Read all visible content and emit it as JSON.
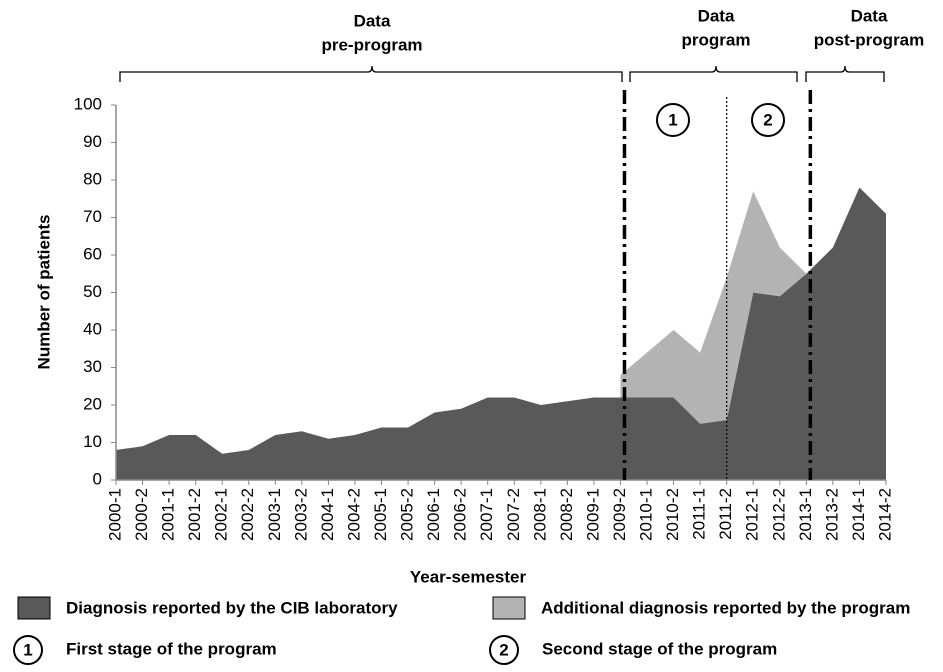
{
  "chart_data": {
    "type": "area",
    "stacked": true,
    "ylabel": "Number of patients",
    "xlabel": "Year-semester",
    "categories": [
      "2000-1",
      "2000-2",
      "2001-1",
      "2001-2",
      "2002-1",
      "2002-2",
      "2003-1",
      "2003-2",
      "2004-1",
      "2004-2",
      "2005-1",
      "2005-2",
      "2006-1",
      "2006-2",
      "2007-1",
      "2007-2",
      "2008-1",
      "2008-2",
      "2009-1",
      "2009-2",
      "2010-1",
      "2010-2",
      "2011-1",
      "2011-2",
      "2012-1",
      "2012-2",
      "2013-1",
      "2013-2",
      "2014-1",
      "2014-2"
    ],
    "series": [
      {
        "name": "Diagnosis reported by the CIB laboratory",
        "color": "#595959",
        "values": [
          8,
          9,
          12,
          12,
          7,
          8,
          12,
          13,
          11,
          12,
          14,
          14,
          18,
          19,
          22,
          22,
          20,
          21,
          22,
          22,
          22,
          22,
          15,
          16,
          50,
          49,
          55,
          62,
          78,
          71
        ]
      },
      {
        "name": "Additional diagnosis reported by the program",
        "color": "#b3b3b3",
        "values": [
          null,
          null,
          null,
          null,
          null,
          null,
          null,
          null,
          null,
          null,
          null,
          null,
          null,
          null,
          null,
          null,
          null,
          null,
          null,
          6,
          12,
          18,
          19,
          38,
          27,
          13,
          0,
          null,
          null,
          null
        ]
      }
    ],
    "ylim": [
      0,
      100
    ],
    "yticks": [
      0,
      10,
      20,
      30,
      40,
      50,
      60,
      70,
      80,
      90,
      100
    ],
    "annotations": [
      {
        "lines": [
          "Data",
          "pre-program"
        ]
      },
      {
        "lines": [
          "Data",
          "program"
        ]
      },
      {
        "lines": [
          "Data",
          "post-program"
        ]
      }
    ],
    "stages": [
      {
        "number": "1",
        "label": "First stage of the program"
      },
      {
        "number": "2",
        "label": "Second stage of the program"
      }
    ]
  }
}
